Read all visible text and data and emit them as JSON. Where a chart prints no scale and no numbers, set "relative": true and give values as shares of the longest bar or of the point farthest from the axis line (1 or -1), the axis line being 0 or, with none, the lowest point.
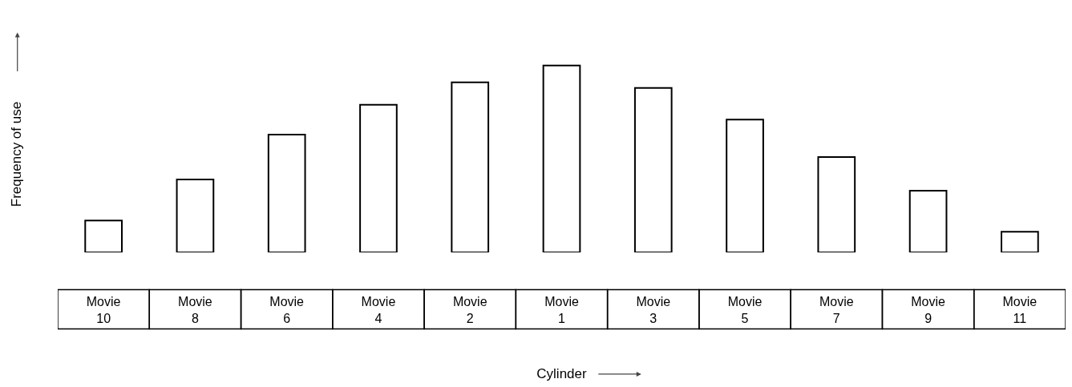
{
  "chart_data": {
    "type": "bar",
    "relative": true,
    "xlabel": "Cylinder",
    "ylabel": "Frequency of use",
    "categories": [
      "Movie 10",
      "Movie 8",
      "Movie 6",
      "Movie 4",
      "Movie 2",
      "Movie 1",
      "Movie 3",
      "Movie 5",
      "Movie 7",
      "Movie 9",
      "Movie 11"
    ],
    "values": [
      0.17,
      0.39,
      0.63,
      0.79,
      0.91,
      1,
      0.88,
      0.71,
      0.51,
      0.33,
      0.11
    ],
    "color": "#ffffff",
    "grid": false
  }
}
